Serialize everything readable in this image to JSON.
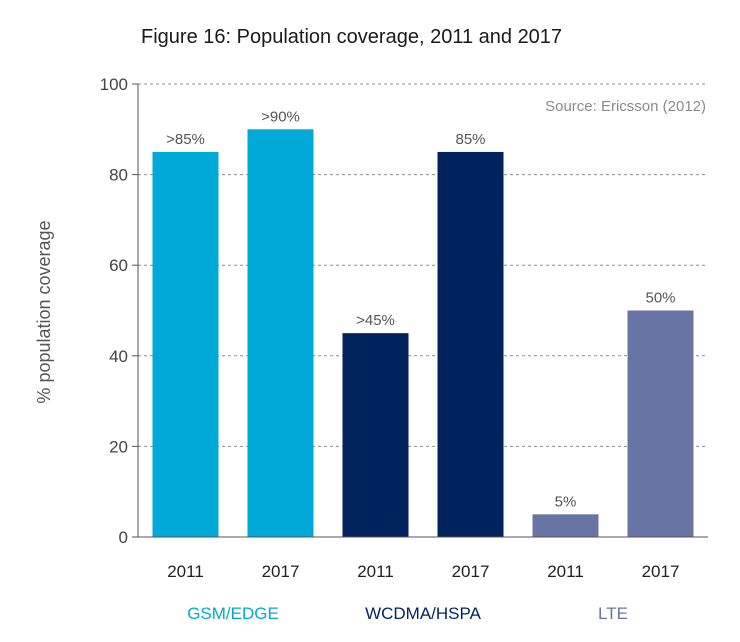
{
  "chart_data": {
    "type": "bar",
    "title": "Figure 16: Population coverage, 2011 and 2017",
    "ylabel": "% population coverage",
    "xlabel": "",
    "ylim": [
      0,
      100
    ],
    "yticks": [
      0,
      20,
      40,
      60,
      80,
      100
    ],
    "grid": true,
    "source": "Source: Ericsson (2012)",
    "categories": [
      "2011",
      "2017",
      "2011",
      "2017",
      "2011",
      "2017"
    ],
    "groups": [
      {
        "name": "GSM/EDGE",
        "color": "#00a9d8",
        "label_color": "#00a9d8",
        "bars": [
          {
            "year": "2011",
            "value": 85,
            "label": ">85%"
          },
          {
            "year": "2017",
            "value": 90,
            "label": ">90%"
          }
        ]
      },
      {
        "name": "WCDMA/HSPA",
        "color": "#00235d",
        "label_color": "#00235d",
        "bars": [
          {
            "year": "2011",
            "value": 45,
            "label": ">45%"
          },
          {
            "year": "2017",
            "value": 85,
            "label": "85%"
          }
        ]
      },
      {
        "name": "LTE",
        "color": "#6874a3",
        "label_color": "#6874a3",
        "bars": [
          {
            "year": "2011",
            "value": 5,
            "label": "5%"
          },
          {
            "year": "2017",
            "value": 50,
            "label": "50%"
          }
        ]
      }
    ]
  }
}
